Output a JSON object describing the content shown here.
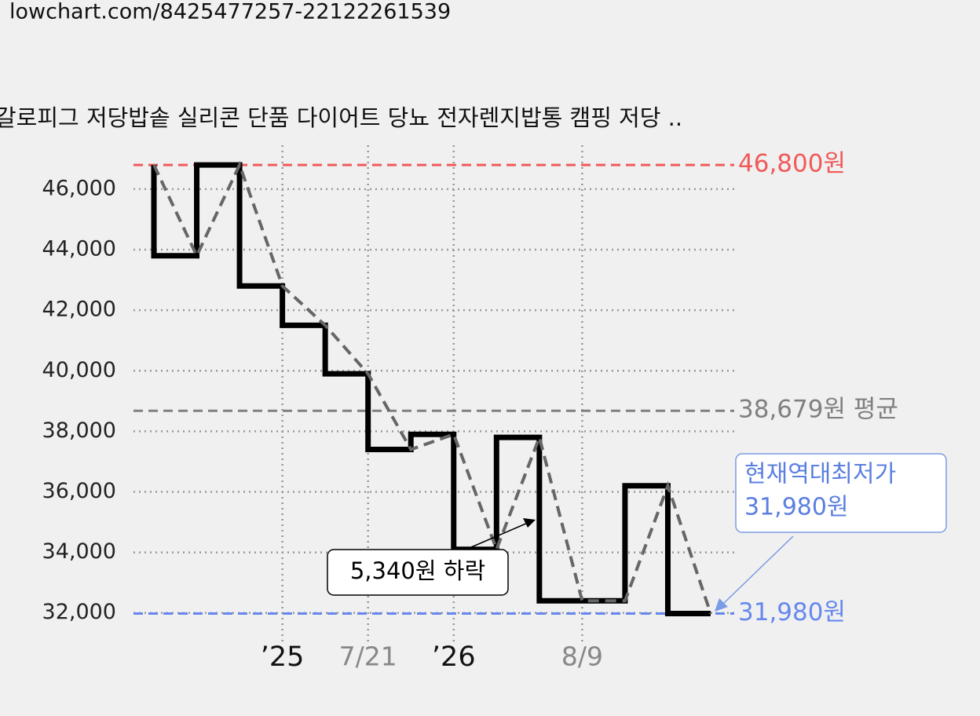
{
  "url": "lowchart.com/8425477257-22122261539",
  "chart_data": {
    "type": "step",
    "title": "갈로피그 저당밥솥 실리콘 단품 다이어트 당뇨 전자렌지밥통 캠핑 저당 ..",
    "categories": [
      null,
      null,
      null,
      "’25",
      null,
      "7/21",
      null,
      "’26",
      null,
      null,
      "8/9",
      null,
      null,
      null
    ],
    "values": [
      46800,
      43800,
      46800,
      42800,
      41500,
      39900,
      37400,
      37900,
      34100,
      37800,
      32400,
      32400,
      36200,
      31980
    ],
    "color": "#000000",
    "trend_color": "#666666",
    "ylim": [
      31500,
      47450
    ],
    "yticks": [
      {
        "value": 32000,
        "label": "32,000"
      },
      {
        "value": 34000,
        "label": "34,000"
      },
      {
        "value": 36000,
        "label": "36,000"
      },
      {
        "value": 38000,
        "label": "38,000"
      },
      {
        "value": 40000,
        "label": "40,000"
      },
      {
        "value": 42000,
        "label": "42,000"
      },
      {
        "value": 44000,
        "label": "44,000"
      },
      {
        "value": 46000,
        "label": "46,000"
      }
    ],
    "grid": true,
    "reference_lines": [
      {
        "value": 46800,
        "label": "46,800원",
        "color": "#f05a5a"
      },
      {
        "value": 38679,
        "label": "38,679원 평균",
        "color": "#808080"
      },
      {
        "value": 31980,
        "label": "31,980원",
        "color": "#6688ee"
      }
    ],
    "annotations": {
      "lowest": [
        "현재역대최저가",
        "31,980원"
      ],
      "drop": "5,340원 하락"
    }
  }
}
